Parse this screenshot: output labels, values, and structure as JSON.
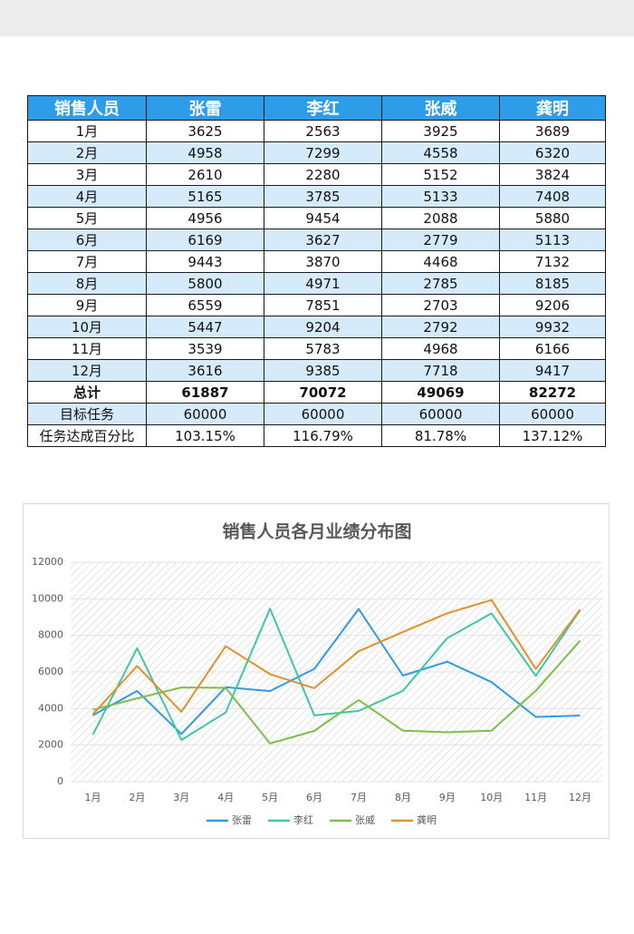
{
  "table": {
    "header": [
      "销售人员",
      "张雷",
      "李红",
      "张威",
      "龚明"
    ],
    "rows": [
      [
        "1月",
        3625,
        2563,
        3925,
        3689
      ],
      [
        "2月",
        4958,
        7299,
        4558,
        6320
      ],
      [
        "3月",
        2610,
        2280,
        5152,
        3824
      ],
      [
        "4月",
        5165,
        3785,
        5133,
        7408
      ],
      [
        "5月",
        4956,
        9454,
        2088,
        5880
      ],
      [
        "6月",
        6169,
        3627,
        2779,
        5113
      ],
      [
        "7月",
        9443,
        3870,
        4468,
        7132
      ],
      [
        "8月",
        5800,
        4971,
        2785,
        8185
      ],
      [
        "9月",
        6559,
        7851,
        2703,
        9206
      ],
      [
        "10月",
        5447,
        9204,
        2792,
        9932
      ],
      [
        "11月",
        3539,
        5783,
        4968,
        6166
      ],
      [
        "12月",
        3616,
        9385,
        7718,
        9417
      ],
      [
        "总计",
        61887,
        70072,
        49069,
        82272
      ],
      [
        "目标任务",
        60000,
        60000,
        60000,
        60000
      ],
      [
        "任务达成百分比",
        "103.15%",
        "116.79%",
        "81.78%",
        "137.12%"
      ]
    ]
  },
  "chart_data": {
    "type": "line",
    "title": "销售人员各月业绩分布图",
    "categories": [
      "1月",
      "2月",
      "3月",
      "4月",
      "5月",
      "6月",
      "7月",
      "8月",
      "9月",
      "10月",
      "11月",
      "12月"
    ],
    "series": [
      {
        "name": "张雷",
        "color": "#2e9be2",
        "values": [
          3625,
          4958,
          2610,
          5165,
          4956,
          6169,
          9443,
          5800,
          6559,
          5447,
          3539,
          3616
        ]
      },
      {
        "name": "李红",
        "color": "#3ec7a6",
        "values": [
          2563,
          7299,
          2280,
          3785,
          9454,
          3627,
          3870,
          4971,
          7851,
          9204,
          5783,
          9385
        ]
      },
      {
        "name": "张威",
        "color": "#7cbf48",
        "values": [
          3925,
          4558,
          5152,
          5133,
          2088,
          2779,
          4468,
          2785,
          2703,
          2792,
          4968,
          7718
        ]
      },
      {
        "name": "龚明",
        "color": "#e0912c",
        "values": [
          3689,
          6320,
          3824,
          7408,
          5880,
          5113,
          7132,
          8185,
          9206,
          9932,
          6166,
          9417
        ]
      }
    ],
    "ylim": [
      0,
      12000
    ],
    "yticks": [
      0,
      2000,
      4000,
      6000,
      8000,
      10000,
      12000
    ],
    "grid": true,
    "legend": "bottom"
  }
}
